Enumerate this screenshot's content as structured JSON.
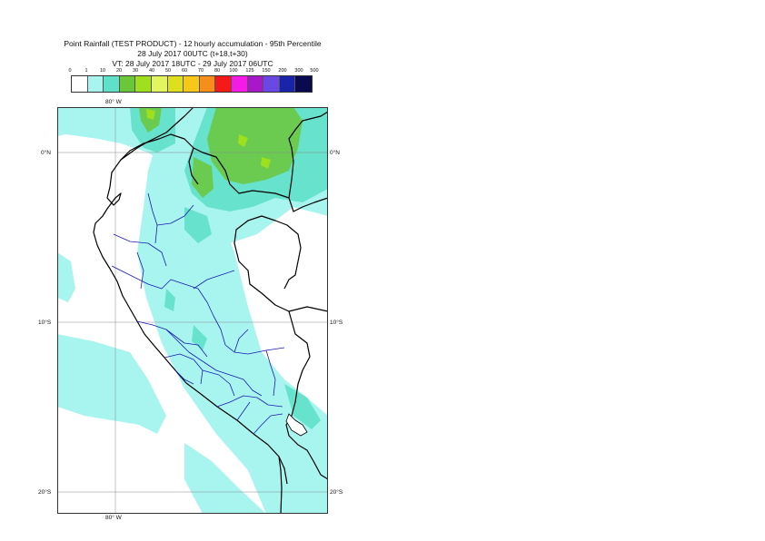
{
  "title": {
    "line1": "Point Rainfall (TEST PRODUCT) - 12 hourly accumulation - 95th Percentile",
    "line2": "28 July 2017 00UTC (t+18,t+30)",
    "line3": "VT: 28 July 2017 18UTC - 29 July 2017 06UTC"
  },
  "legend": {
    "thresholds": [
      "0",
      "1",
      "10",
      "20",
      "30",
      "40",
      "50",
      "60",
      "70",
      "80",
      "100",
      "125",
      "150",
      "200",
      "300",
      "500"
    ],
    "colors": [
      "#ffffff",
      "#a8f5f0",
      "#5fe0c8",
      "#6cc63a",
      "#9ee01e",
      "#e2f560",
      "#dde01a",
      "#f7c81a",
      "#f58e1a",
      "#f51a1a",
      "#f51ae6",
      "#a818c8",
      "#6a48e6",
      "#1a24a8",
      "#0a0a50"
    ]
  },
  "map": {
    "lon_labels": [
      "80° W",
      "80° W"
    ],
    "lat_labels": {
      "lat0_left": "0°N",
      "lat0_right": "0°N",
      "lat10_left": "10°S",
      "lat10_right": "10°S",
      "lat20_left": "20°S",
      "lat20_right": "20°S"
    },
    "colors": {
      "light_cyan": "#a8f5f0",
      "teal": "#5fe0c8",
      "green": "#6cc63a",
      "yellow_green": "#9ee01e",
      "coast": "#000000",
      "admin": "#1a1ab4",
      "grid": "#888888"
    }
  }
}
